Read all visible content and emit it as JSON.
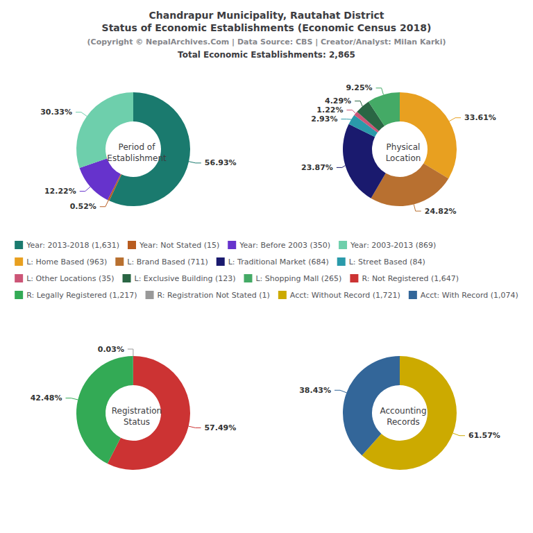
{
  "title": "Chandrapur Municipality, Rautahat District\nStatus of Economic Establishments (Economic Census 2018)",
  "subtitle": "(Copyright © NepalArchives.Com | Data Source: CBS | Creator/Analyst: Milan Karki)",
  "annotations": [
    "Total Economic Establishments: 2,865"
  ],
  "legend": "center",
  "chart_data": [
    {
      "type": "pie",
      "title": "Period of\nEstablishment",
      "categories": [
        "Year: 2013-2018 (1,631)",
        "Year: Not Stated (15)",
        "Year: Before 2003 (350)",
        "Year: 2003-2013 (869)"
      ],
      "values": [
        56.93,
        0.52,
        12.22,
        30.33
      ],
      "value_labels": [
        "56.93%",
        "0.52%",
        "12.22%",
        "30.33%"
      ],
      "colors": [
        "#1a7a6e",
        "#b85c20",
        "#6633cc",
        "#6ecfac"
      ],
      "data_labels": true
    },
    {
      "type": "pie",
      "title": "Physical\nLocation",
      "categories": [
        "L: Home Based (963)",
        "L: Brand Based (711)",
        "L: Traditional Market (684)",
        "L: Street Based (84)",
        "L: Other Locations (35)",
        "L: Exclusive Building (123)",
        "L: Shopping Mall (265)"
      ],
      "values": [
        33.61,
        24.82,
        23.87,
        2.93,
        1.22,
        4.29,
        9.25
      ],
      "value_labels": [
        "33.61%",
        "24.82%",
        "23.87%",
        "2.93%",
        "1.22%",
        "4.29%",
        "9.25%"
      ],
      "colors": [
        "#e8a020",
        "#b87030",
        "#1a1a6e",
        "#2a9aaa",
        "#cc5577",
        "#2a6644",
        "#44aa66"
      ],
      "data_labels": true
    },
    {
      "type": "pie",
      "title": "Registration\nStatus",
      "categories": [
        "R: Not Registered (1,647)",
        "R: Legally Registered (1,217)",
        "R: Registration Not Stated (1)"
      ],
      "values": [
        57.49,
        42.48,
        0.03
      ],
      "value_labels": [
        "57.49%",
        "42.48%",
        "0.03%"
      ],
      "colors": [
        "#cc3333",
        "#33aa55",
        "#999999"
      ],
      "data_labels": true
    },
    {
      "type": "pie",
      "title": "Accounting\nRecords",
      "categories": [
        "Acct: Without Record (1,721)",
        "Acct: With Record (1,074)"
      ],
      "values": [
        61.57,
        38.43
      ],
      "value_labels": [
        "61.57%",
        "38.43%"
      ],
      "colors": [
        "#ccaa00",
        "#336699"
      ],
      "data_labels": true
    }
  ]
}
